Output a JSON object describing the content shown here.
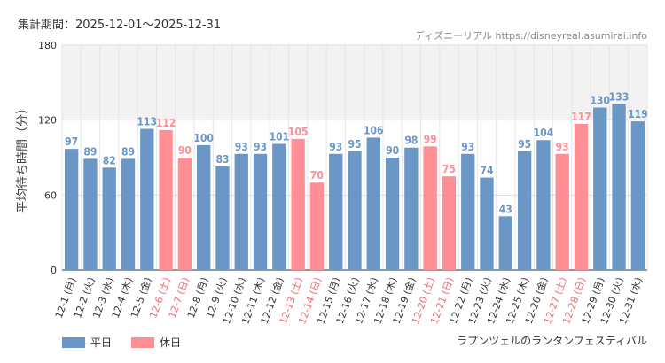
{
  "header": {
    "period_label": "集計期間：2025-12-01〜2025-12-31",
    "credit": "ディズニーリアル https://disneyreal.asumirai.info"
  },
  "chart_data": {
    "type": "bar",
    "title": "ラプンツェルのランタンフェスティバル",
    "xlabel": "",
    "ylabel": "平均待ち時間（分）",
    "ylim": [
      0,
      180
    ],
    "yticks": [
      0,
      60,
      120,
      180
    ],
    "grid": true,
    "shaded_band": [
      120,
      180
    ],
    "legend_position": "bottom-left",
    "series_colors": {
      "weekday": "#6a97c6",
      "holiday": "#ff8e95"
    },
    "holiday_label_color": "#ee6b72",
    "legend": [
      {
        "key": "weekday",
        "label": "平日"
      },
      {
        "key": "holiday",
        "label": "休日"
      }
    ],
    "categories": [
      "12-1 (月)",
      "12-2 (火)",
      "12-3 (水)",
      "12-4 (木)",
      "12-5 (金)",
      "12-6 (土)",
      "12-7 (日)",
      "12-8 (月)",
      "12-9 (火)",
      "12-10 (水)",
      "12-11 (木)",
      "12-12 (金)",
      "12-13 (土)",
      "12-14 (日)",
      "12-15 (月)",
      "12-16 (火)",
      "12-17 (水)",
      "12-18 (木)",
      "12-19 (金)",
      "12-20 (土)",
      "12-21 (日)",
      "12-22 (月)",
      "12-23 (火)",
      "12-24 (水)",
      "12-25 (木)",
      "12-26 (金)",
      "12-27 (土)",
      "12-28 (日)",
      "12-29 (月)",
      "12-30 (火)",
      "12-31 (水)"
    ],
    "values": [
      97,
      89,
      82,
      89,
      113,
      112,
      90,
      100,
      83,
      93,
      93,
      101,
      105,
      70,
      93,
      95,
      106,
      90,
      98,
      99,
      75,
      93,
      74,
      43,
      95,
      104,
      93,
      117,
      130,
      133,
      119
    ],
    "day_type": [
      "weekday",
      "weekday",
      "weekday",
      "weekday",
      "weekday",
      "holiday",
      "holiday",
      "weekday",
      "weekday",
      "weekday",
      "weekday",
      "weekday",
      "holiday",
      "holiday",
      "weekday",
      "weekday",
      "weekday",
      "weekday",
      "weekday",
      "holiday",
      "holiday",
      "weekday",
      "weekday",
      "weekday",
      "weekday",
      "weekday",
      "holiday",
      "holiday",
      "weekday",
      "weekday",
      "weekday"
    ]
  }
}
